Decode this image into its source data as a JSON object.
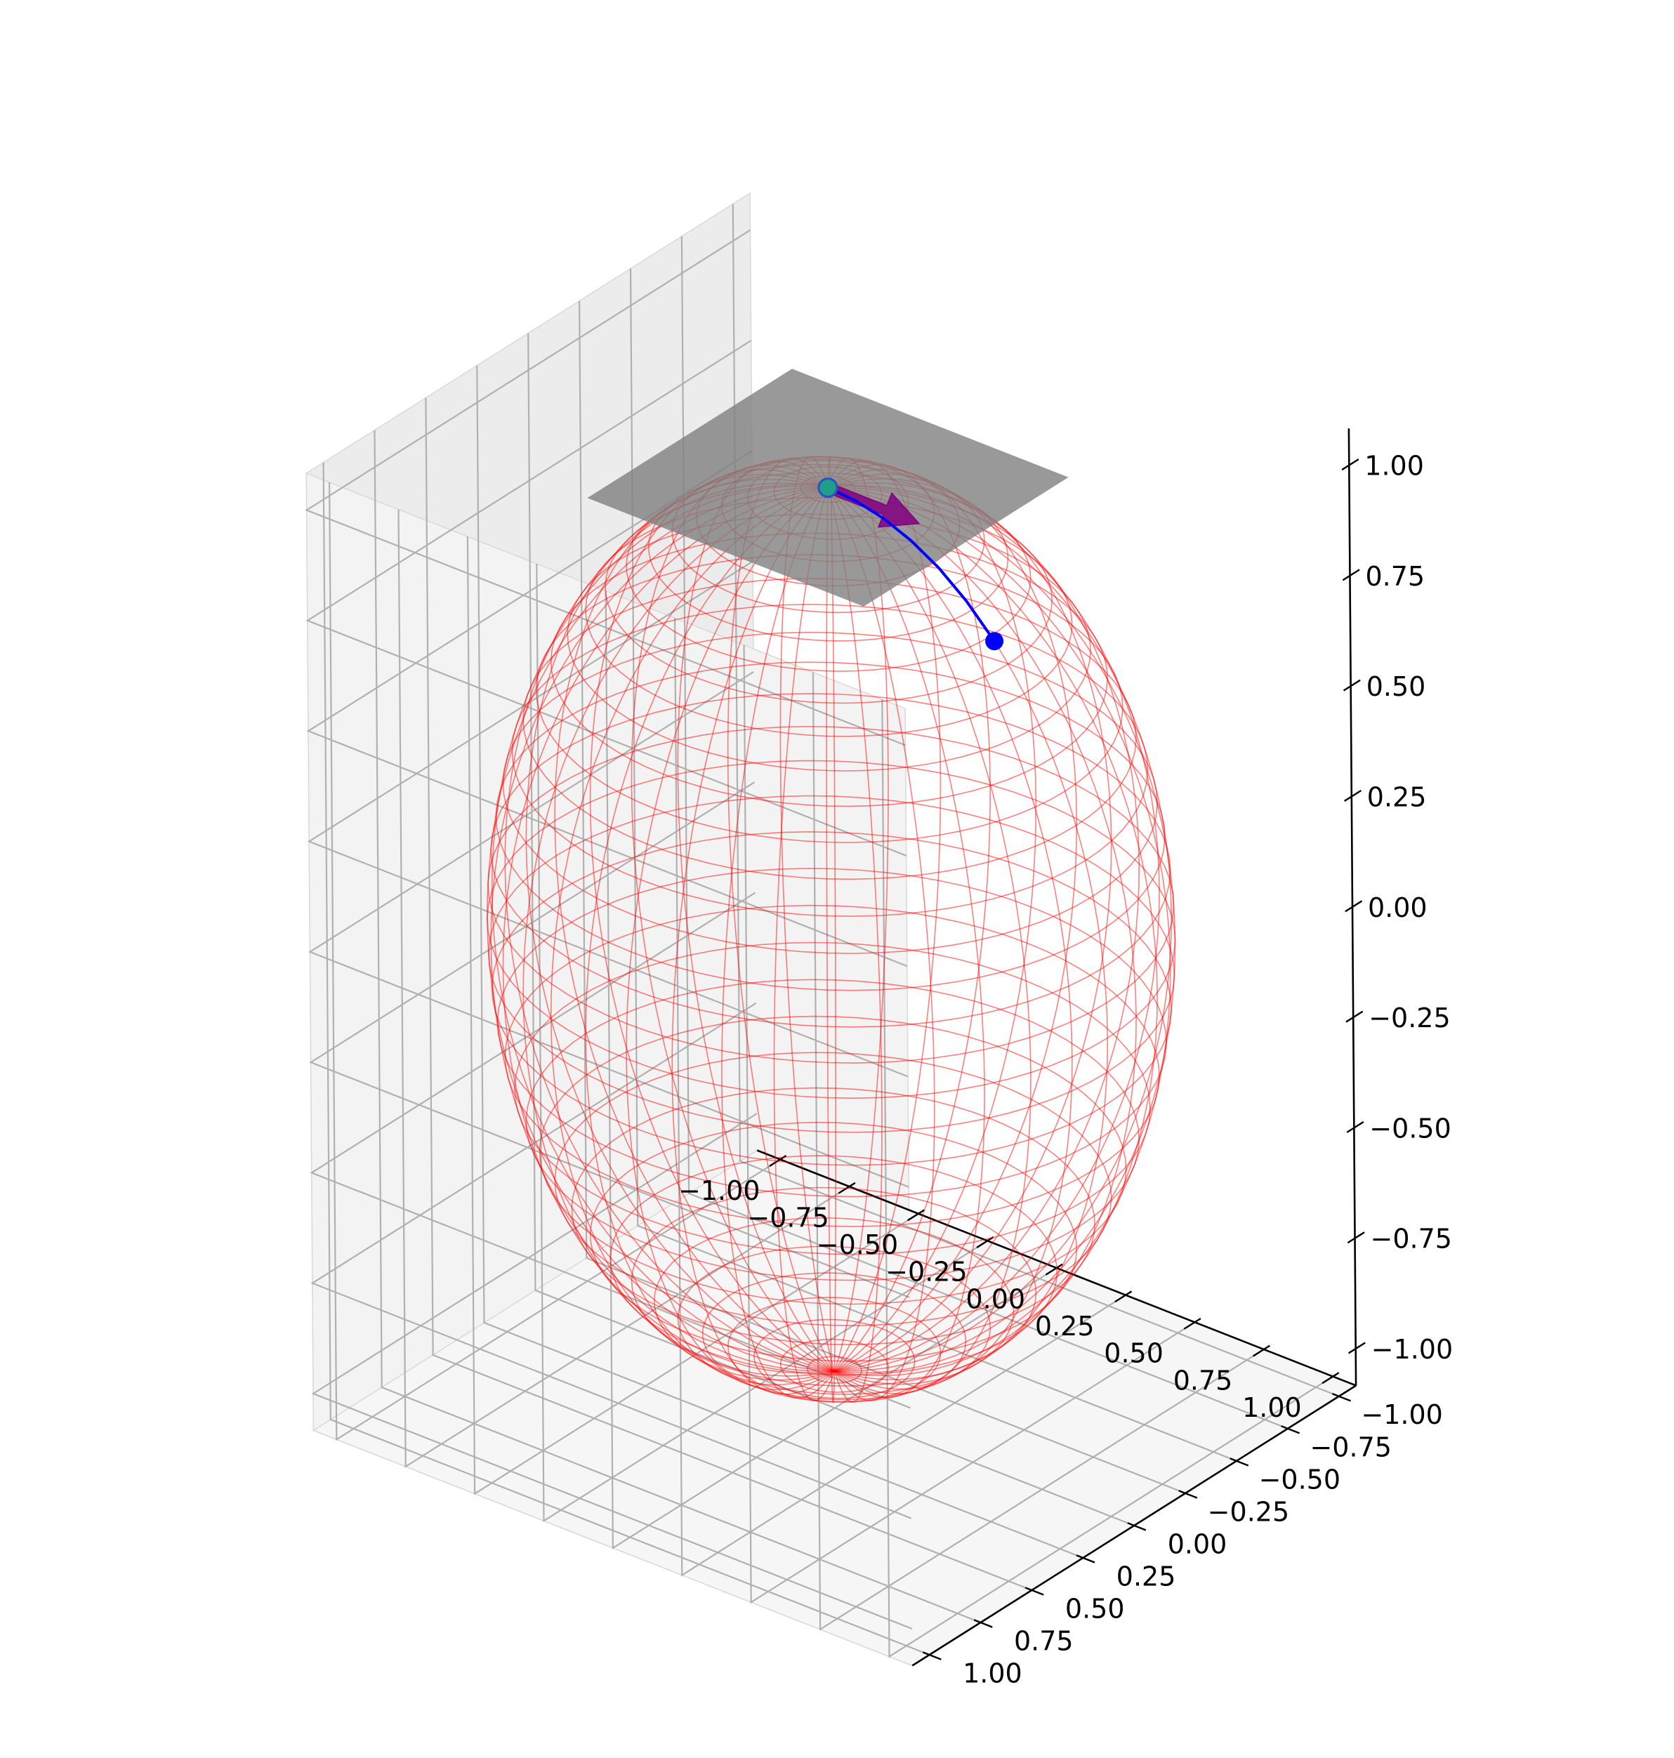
{
  "chart_data": {
    "type": "scatter",
    "subtype": "3d-sphere-wireframe",
    "title": "",
    "axes": {
      "x": {
        "label": "",
        "range": [
          -1.0,
          1.0
        ],
        "ticks": [
          -1.0,
          -0.75,
          -0.5,
          -0.25,
          0.0,
          0.25,
          0.5,
          0.75,
          1.0
        ],
        "tick_labels": [
          "−1.00",
          "−0.75",
          "−0.50",
          "−0.25",
          "0.00",
          "0.25",
          "0.50",
          "0.75",
          "1.00"
        ]
      },
      "y": {
        "label": "",
        "range": [
          -1.0,
          1.0
        ],
        "ticks": [
          -1.0,
          -0.75,
          -0.5,
          -0.25,
          0.0,
          0.25,
          0.5,
          0.75,
          1.0
        ],
        "tick_labels": [
          "−1.00",
          "−0.75",
          "−0.50",
          "−0.25",
          "0.00",
          "0.25",
          "0.50",
          "0.75",
          "1.00"
        ]
      },
      "z": {
        "label": "",
        "range": [
          -1.0,
          1.0
        ],
        "ticks": [
          -1.0,
          -0.75,
          -0.5,
          -0.25,
          0.0,
          0.25,
          0.5,
          0.75,
          1.0
        ],
        "tick_labels": [
          "−1.00",
          "−0.75",
          "−0.50",
          "−0.25",
          "0.00",
          "0.25",
          "0.50",
          "0.75",
          "1.00"
        ]
      }
    },
    "grid": true,
    "view": {
      "elevation_deg": 30,
      "azimuth_deg": -60
    },
    "sphere": {
      "radius": 1.0,
      "center": [
        0,
        0,
        0
      ],
      "color": "#ff0000",
      "style": "wireframe",
      "alpha": 0.5
    },
    "tangent_plane": {
      "z": 1.0,
      "x_range": [
        -0.5,
        0.5
      ],
      "y_range": [
        -0.5,
        0.5
      ],
      "color": "#808080",
      "alpha": 0.8
    },
    "base_point": {
      "xyz": [
        0.0,
        0.0,
        1.0
      ],
      "color": "#1f9e89"
    },
    "tangent_vector": {
      "origin": [
        0.0,
        0.0,
        1.0
      ],
      "vector": [
        0.33,
        0.0,
        0.0
      ],
      "color": "#800080"
    },
    "geodesic": {
      "color": "#0000ff",
      "points": [
        [
          0.0,
          0.0,
          1.0
        ],
        [
          0.1,
          0.0,
          0.995
        ],
        [
          0.2,
          0.0,
          0.98
        ],
        [
          0.3,
          0.0,
          0.954
        ],
        [
          0.4,
          0.0,
          0.917
        ],
        [
          0.5,
          0.0,
          0.866
        ],
        [
          0.6,
          0.0,
          0.8
        ]
      ]
    },
    "end_point": {
      "xyz": [
        0.6,
        0.0,
        0.8
      ],
      "color": "#0000ff"
    }
  },
  "colors": {
    "pane_x": "#ececec",
    "pane_y": "#f3f3f3",
    "pane_z": "#f6f6f6",
    "grid": "#b0b0b0",
    "axis_line": "#000000"
  }
}
